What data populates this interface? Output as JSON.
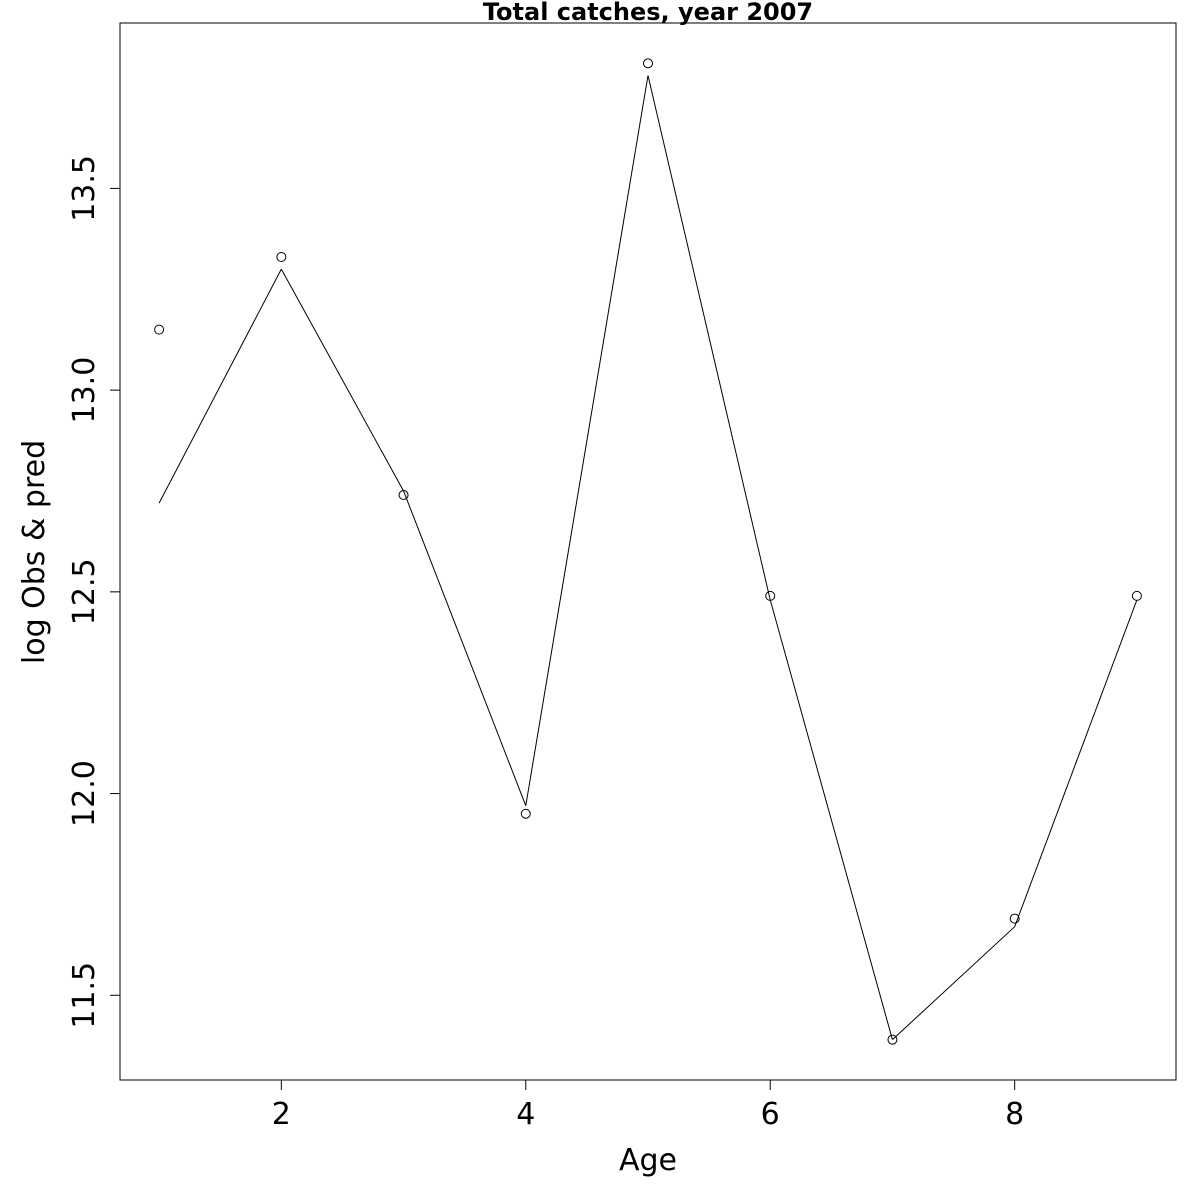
{
  "chart_data": {
    "type": "line",
    "title": "Total catches, year 2007",
    "xlabel": "Age",
    "ylabel": "log Obs & pred",
    "xlim": [
      0.68,
      9.32
    ],
    "ylim": [
      11.29,
      13.91
    ],
    "x_ticks": [
      2,
      4,
      6,
      8
    ],
    "x_tick_labels": [
      "2",
      "4",
      "6",
      "8"
    ],
    "y_ticks": [
      11.5,
      12.0,
      12.5,
      13.0,
      13.5
    ],
    "y_tick_labels": [
      "11.5",
      "12.0",
      "12.5",
      "13.0",
      "13.5"
    ],
    "grid": false,
    "legend": "none",
    "series": [
      {
        "kind": "points",
        "marker": "open-circle",
        "x": [
          1,
          2,
          3,
          4,
          5,
          6,
          7,
          8,
          9
        ],
        "y": [
          13.15,
          13.33,
          12.74,
          11.95,
          13.81,
          12.49,
          11.39,
          11.69,
          12.49
        ]
      },
      {
        "kind": "line",
        "x": [
          1,
          2,
          3,
          4,
          5,
          6,
          7,
          8,
          9
        ],
        "y": [
          12.72,
          13.3,
          12.75,
          11.97,
          13.78,
          12.48,
          11.39,
          11.67,
          12.48
        ]
      }
    ]
  }
}
